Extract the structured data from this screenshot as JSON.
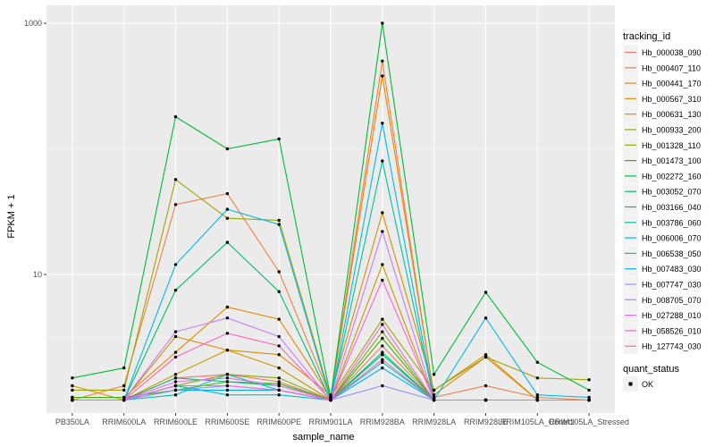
{
  "chart_data": {
    "type": "line",
    "xlabel": "sample_name",
    "ylabel": "FPKM + 1",
    "y_scale": "log10",
    "ylim": [
      1,
      1000
    ],
    "y_ticks": [
      10,
      1000
    ],
    "y_tick_labels": [
      "10",
      "1000"
    ],
    "grid": true,
    "legend_position": "right",
    "categories": [
      "PB350LA",
      "RRIM600LA",
      "RRIM600LE",
      "RRIM600SE",
      "RRIM600PE",
      "RRIM901LA",
      "RRIM928BA",
      "RRIM928LA",
      "RRIM928LE",
      "RRIM105LA_Control",
      "RRIM105LA_Stressed"
    ],
    "series": [
      {
        "name": "Hb_000038_090",
        "color": "#F8766D",
        "values": [
          1,
          1,
          1.5,
          1.6,
          1.4,
          1,
          2.7,
          1,
          1,
          1,
          1
        ]
      },
      {
        "name": "Hb_000407_110",
        "color": "#EE8044",
        "values": [
          1,
          1.3,
          36,
          44,
          10.5,
          1.05,
          500,
          1.05,
          1.3,
          1.05,
          1
        ]
      },
      {
        "name": "Hb_000441_170",
        "color": "#E58700",
        "values": [
          1.05,
          1.05,
          2.4,
          5.5,
          4.4,
          1.05,
          380,
          1.1,
          2.2,
          1,
          1
        ]
      },
      {
        "name": "Hb_000567_310",
        "color": "#D89000",
        "values": [
          1.3,
          1,
          3.2,
          2.5,
          2.3,
          1.1,
          31,
          1.2,
          2.3,
          1,
          1
        ]
      },
      {
        "name": "Hb_000631_130",
        "color": "#C99800",
        "values": [
          1,
          1,
          1.6,
          2.5,
          1.8,
          1,
          12,
          1,
          1,
          1,
          1
        ]
      },
      {
        "name": "Hb_000933_200",
        "color": "#A3A500",
        "values": [
          1.2,
          1.2,
          57,
          28,
          27,
          1.05,
          4.4,
          1.2,
          2.2,
          1.5,
          1.45
        ]
      },
      {
        "name": "Hb_001328_110",
        "color": "#85AD00",
        "values": [
          1,
          1,
          1.3,
          1.6,
          1.5,
          1,
          3.5,
          1,
          1,
          1,
          1
        ]
      },
      {
        "name": "Hb_001473_100",
        "color": "#39B600",
        "values": [
          1.05,
          1.05,
          1.2,
          1.4,
          1.35,
          1,
          3.1,
          1,
          1,
          1,
          1
        ]
      },
      {
        "name": "Hb_002272_160",
        "color": "#00BA38",
        "values": [
          1.5,
          1.8,
          180,
          100,
          120,
          1.05,
          1000,
          1.6,
          7.2,
          2,
          1.2
        ]
      },
      {
        "name": "Hb_003052_070",
        "color": "#00BE67",
        "values": [
          1,
          1,
          7.5,
          18,
          7.3,
          1,
          2.4,
          1,
          1,
          1,
          1
        ]
      },
      {
        "name": "Hb_003166_040",
        "color": "#00BF7D",
        "values": [
          1,
          1,
          1.5,
          1.4,
          1.3,
          1,
          2.3,
          1,
          1,
          1,
          1
        ]
      },
      {
        "name": "Hb_003786_060",
        "color": "#00C1A3",
        "values": [
          1,
          1,
          1.1,
          1.6,
          1.2,
          1,
          80,
          1,
          1,
          1,
          1
        ]
      },
      {
        "name": "Hb_006006_070",
        "color": "#00BFC4",
        "values": [
          1,
          1,
          1.3,
          1.1,
          1.1,
          1,
          2,
          1,
          1,
          1,
          1
        ]
      },
      {
        "name": "Hb_006538_050",
        "color": "#00B9E3",
        "values": [
          1,
          1,
          12,
          33,
          25,
          1,
          160,
          1,
          4.5,
          1.1,
          1.05
        ]
      },
      {
        "name": "Hb_007483_030",
        "color": "#00B0F6",
        "values": [
          1,
          1,
          1.2,
          1.2,
          1.2,
          1,
          1.8,
          1,
          1,
          1,
          1
        ]
      },
      {
        "name": "Hb_007747_030",
        "color": "#9590FF",
        "values": [
          1,
          1,
          1.2,
          1.3,
          1.2,
          1,
          1.3,
          1,
          1,
          1,
          1
        ]
      },
      {
        "name": "Hb_008705_070",
        "color": "#C77CFF",
        "values": [
          1,
          1,
          3.5,
          4.5,
          3.2,
          1,
          22,
          1,
          1,
          1,
          1
        ]
      },
      {
        "name": "Hb_027288_010",
        "color": "#E76BF3",
        "values": [
          1,
          1,
          1.4,
          1.5,
          1.3,
          1,
          4,
          1,
          1,
          1,
          1
        ]
      },
      {
        "name": "Hb_058526_010",
        "color": "#FA62DB",
        "values": [
          1,
          1,
          1.3,
          1.3,
          1.2,
          1,
          9,
          1,
          1,
          1,
          1
        ]
      },
      {
        "name": "Hb_127743_030",
        "color": "#FF62BC",
        "values": [
          1,
          1,
          2.2,
          3.4,
          2.7,
          1,
          2.1,
          1,
          1,
          1,
          1
        ]
      }
    ]
  },
  "legend": {
    "title": "tracking_id"
  },
  "quant_legend": {
    "title": "quant_status",
    "items": [
      "OK"
    ]
  }
}
